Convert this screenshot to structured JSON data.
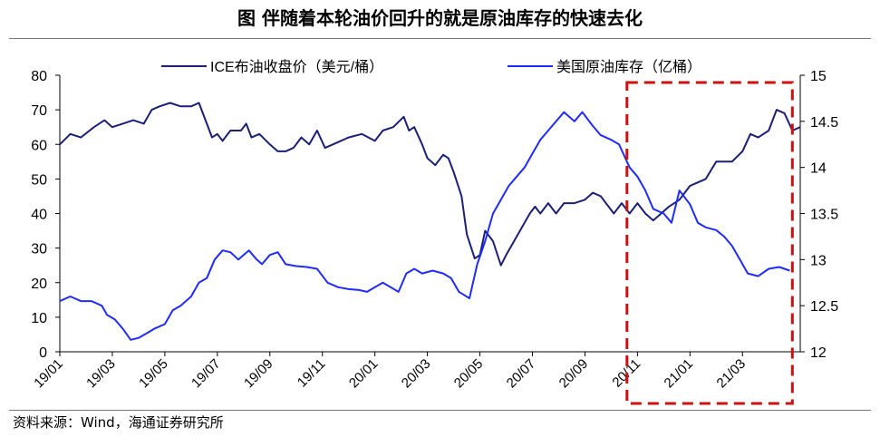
{
  "title": "图  伴随着本轮油价回升的就是原油库存的快速去化",
  "source": "资料来源：Wind，海通证券研究所",
  "colors": {
    "brent_line": "#1c1f7a",
    "inventory_line": "#1f2bff",
    "highlight_box": "#cc1111",
    "axis": "#000000"
  },
  "chart_data": {
    "type": "line",
    "dual_axis": true,
    "x_tick_labels": [
      "19/01",
      "19/03",
      "19/05",
      "19/07",
      "19/09",
      "19/11",
      "20/01",
      "20/03",
      "20/05",
      "20/07",
      "20/09",
      "20/11",
      "21/01",
      "21/03"
    ],
    "x_range": [
      0,
      28.2
    ],
    "y_left": {
      "range": [
        0,
        80
      ],
      "ticks": [
        0,
        10,
        20,
        30,
        40,
        50,
        60,
        70,
        80
      ]
    },
    "y_right": {
      "range": [
        12,
        15
      ],
      "ticks": [
        "12",
        "12.5",
        "13",
        "13.5",
        "14",
        "14.5",
        "15"
      ]
    },
    "legend_position": "top",
    "highlight_region": {
      "x_start": 21.6,
      "x_end": 27.9,
      "style": "dashed box"
    },
    "series": [
      {
        "name": "ICE布油收盘价（美元/桶）",
        "axis": "left",
        "points": [
          [
            0,
            60
          ],
          [
            0.4,
            63
          ],
          [
            0.8,
            62
          ],
          [
            1.3,
            65
          ],
          [
            1.7,
            67
          ],
          [
            2.0,
            65
          ],
          [
            2.4,
            66
          ],
          [
            2.8,
            67
          ],
          [
            3.2,
            66
          ],
          [
            3.5,
            70
          ],
          [
            3.8,
            71
          ],
          [
            4.2,
            72
          ],
          [
            4.6,
            71
          ],
          [
            5.0,
            71
          ],
          [
            5.3,
            72
          ],
          [
            5.6,
            66
          ],
          [
            5.8,
            62
          ],
          [
            6.0,
            63
          ],
          [
            6.2,
            61
          ],
          [
            6.5,
            64
          ],
          [
            6.9,
            64
          ],
          [
            7.1,
            66
          ],
          [
            7.3,
            62
          ],
          [
            7.6,
            63
          ],
          [
            8.0,
            60
          ],
          [
            8.3,
            58
          ],
          [
            8.6,
            58
          ],
          [
            8.9,
            59
          ],
          [
            9.2,
            62
          ],
          [
            9.5,
            60
          ],
          [
            9.8,
            64
          ],
          [
            10.1,
            59
          ],
          [
            10.4,
            60
          ],
          [
            10.7,
            61
          ],
          [
            11.0,
            62
          ],
          [
            11.5,
            63
          ],
          [
            12.0,
            61
          ],
          [
            12.3,
            64
          ],
          [
            12.7,
            65
          ],
          [
            13.1,
            68
          ],
          [
            13.3,
            64
          ],
          [
            13.5,
            65
          ],
          [
            13.8,
            60
          ],
          [
            14.0,
            56
          ],
          [
            14.3,
            54
          ],
          [
            14.6,
            57
          ],
          [
            14.8,
            56
          ],
          [
            15.0,
            52
          ],
          [
            15.3,
            45
          ],
          [
            15.5,
            34
          ],
          [
            15.8,
            27
          ],
          [
            16.0,
            28
          ],
          [
            16.2,
            35
          ],
          [
            16.5,
            32
          ],
          [
            16.8,
            25
          ],
          [
            17.0,
            28
          ],
          [
            17.3,
            32
          ],
          [
            17.6,
            36
          ],
          [
            17.9,
            40
          ],
          [
            18.1,
            42
          ],
          [
            18.3,
            40
          ],
          [
            18.6,
            43
          ],
          [
            18.9,
            40
          ],
          [
            19.2,
            43
          ],
          [
            19.6,
            43
          ],
          [
            20.0,
            44
          ],
          [
            20.3,
            46
          ],
          [
            20.6,
            45
          ],
          [
            20.9,
            42
          ],
          [
            21.1,
            40
          ],
          [
            21.4,
            43
          ],
          [
            21.7,
            40
          ],
          [
            22.0,
            43
          ],
          [
            22.3,
            40
          ],
          [
            22.6,
            38
          ],
          [
            22.9,
            40
          ],
          [
            23.2,
            42
          ],
          [
            23.6,
            44
          ],
          [
            24.0,
            48
          ],
          [
            24.3,
            49
          ],
          [
            24.6,
            50
          ],
          [
            25.0,
            55
          ],
          [
            25.3,
            55
          ],
          [
            25.6,
            55
          ],
          [
            26.0,
            58
          ],
          [
            26.3,
            63
          ],
          [
            26.6,
            62
          ],
          [
            27.0,
            64
          ],
          [
            27.3,
            70
          ],
          [
            27.6,
            69
          ],
          [
            27.9,
            64
          ],
          [
            28.2,
            65
          ]
        ]
      },
      {
        "name": "美国原油库存（亿桶）",
        "axis": "right",
        "points": [
          [
            0,
            12.55
          ],
          [
            0.4,
            12.6
          ],
          [
            0.8,
            12.55
          ],
          [
            1.2,
            12.55
          ],
          [
            1.6,
            12.5
          ],
          [
            1.8,
            12.4
          ],
          [
            2.1,
            12.35
          ],
          [
            2.4,
            12.25
          ],
          [
            2.7,
            12.13
          ],
          [
            3.0,
            12.15
          ],
          [
            3.3,
            12.2
          ],
          [
            3.6,
            12.25
          ],
          [
            4.0,
            12.3
          ],
          [
            4.3,
            12.45
          ],
          [
            4.6,
            12.5
          ],
          [
            5.0,
            12.6
          ],
          [
            5.3,
            12.75
          ],
          [
            5.6,
            12.8
          ],
          [
            5.9,
            13.0
          ],
          [
            6.2,
            13.1
          ],
          [
            6.5,
            13.08
          ],
          [
            6.8,
            13.0
          ],
          [
            7.0,
            13.05
          ],
          [
            7.2,
            13.1
          ],
          [
            7.5,
            13.0
          ],
          [
            7.7,
            12.95
          ],
          [
            8.0,
            13.05
          ],
          [
            8.3,
            13.08
          ],
          [
            8.6,
            12.95
          ],
          [
            9.0,
            12.93
          ],
          [
            9.4,
            12.92
          ],
          [
            9.8,
            12.9
          ],
          [
            10.2,
            12.75
          ],
          [
            10.6,
            12.7
          ],
          [
            11.0,
            12.68
          ],
          [
            11.4,
            12.67
          ],
          [
            11.7,
            12.65
          ],
          [
            12.0,
            12.7
          ],
          [
            12.3,
            12.75
          ],
          [
            12.6,
            12.7
          ],
          [
            12.9,
            12.65
          ],
          [
            13.2,
            12.85
          ],
          [
            13.5,
            12.9
          ],
          [
            13.8,
            12.85
          ],
          [
            14.2,
            12.88
          ],
          [
            14.6,
            12.85
          ],
          [
            14.9,
            12.8
          ],
          [
            15.2,
            12.65
          ],
          [
            15.6,
            12.58
          ],
          [
            15.9,
            12.95
          ],
          [
            16.2,
            13.2
          ],
          [
            16.5,
            13.5
          ],
          [
            16.8,
            13.65
          ],
          [
            17.1,
            13.8
          ],
          [
            17.4,
            13.9
          ],
          [
            17.7,
            14.0
          ],
          [
            18.0,
            14.15
          ],
          [
            18.3,
            14.3
          ],
          [
            18.6,
            14.4
          ],
          [
            18.9,
            14.5
          ],
          [
            19.2,
            14.6
          ],
          [
            19.6,
            14.5
          ],
          [
            19.9,
            14.6
          ],
          [
            20.3,
            14.45
          ],
          [
            20.6,
            14.35
          ],
          [
            21.0,
            14.3
          ],
          [
            21.3,
            14.25
          ],
          [
            21.7,
            14.0
          ],
          [
            22.0,
            13.9
          ],
          [
            22.3,
            13.75
          ],
          [
            22.6,
            13.55
          ],
          [
            23.0,
            13.5
          ],
          [
            23.3,
            13.4
          ],
          [
            23.6,
            13.75
          ],
          [
            24.0,
            13.6
          ],
          [
            24.3,
            13.4
          ],
          [
            24.6,
            13.35
          ],
          [
            25.0,
            13.32
          ],
          [
            25.3,
            13.25
          ],
          [
            25.6,
            13.15
          ],
          [
            25.9,
            13.0
          ],
          [
            26.2,
            12.85
          ],
          [
            26.6,
            12.82
          ],
          [
            27.0,
            12.9
          ],
          [
            27.4,
            12.92
          ],
          [
            27.8,
            12.88
          ]
        ]
      }
    ]
  }
}
